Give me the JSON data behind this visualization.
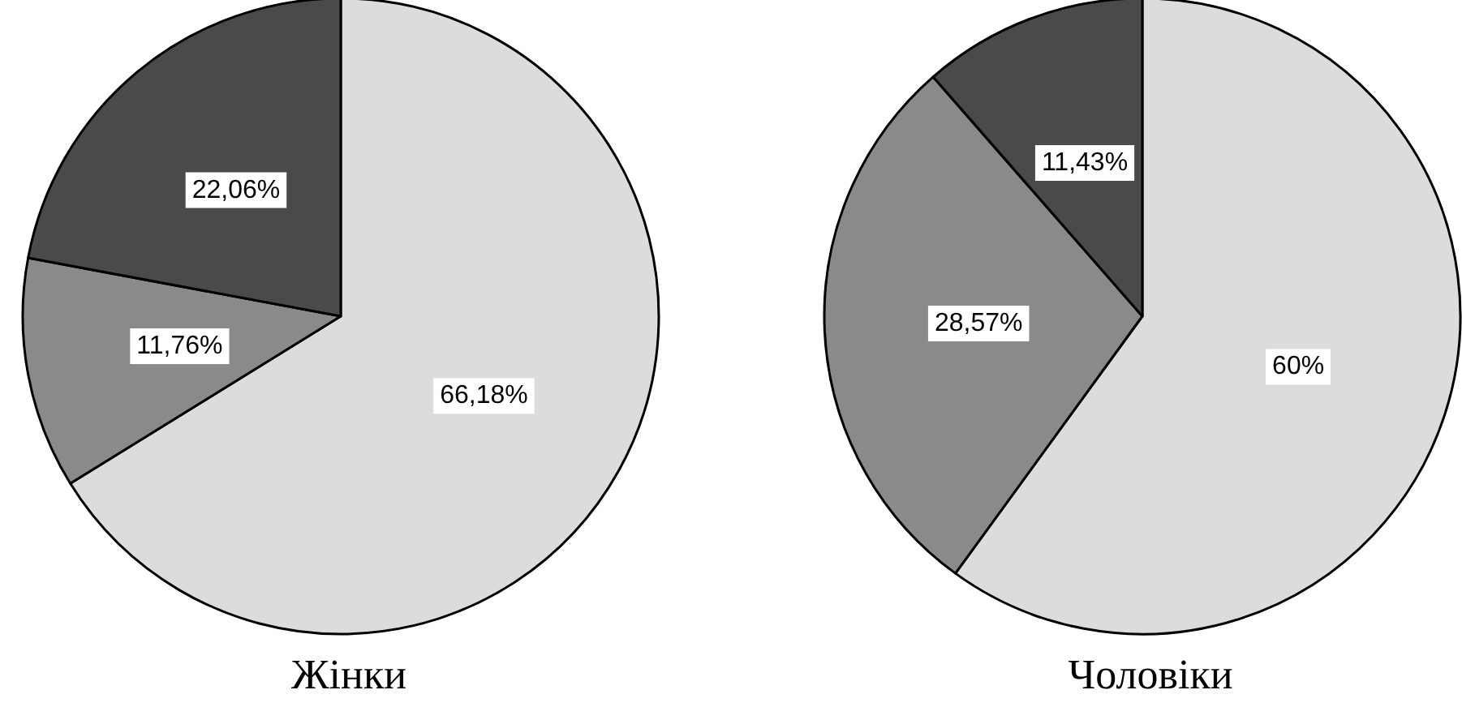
{
  "chart_data": [
    {
      "type": "pie",
      "title": "Жінки",
      "categories": [
        null,
        null,
        null
      ],
      "values": [
        66.18,
        11.76,
        22.06
      ],
      "value_labels": [
        "66,18%",
        "11,76%",
        "22,06%"
      ],
      "colors": [
        "#dcdcdc",
        "#8a8a8a",
        "#4a4a4a"
      ]
    },
    {
      "type": "pie",
      "title": "Чоловіки",
      "categories": [
        null,
        null,
        null
      ],
      "values": [
        60,
        28.57,
        11.43
      ],
      "value_labels": [
        "60%",
        "28,57%",
        "11,43%"
      ],
      "colors": [
        "#dcdcdc",
        "#8a8a8a",
        "#4a4a4a"
      ]
    }
  ]
}
